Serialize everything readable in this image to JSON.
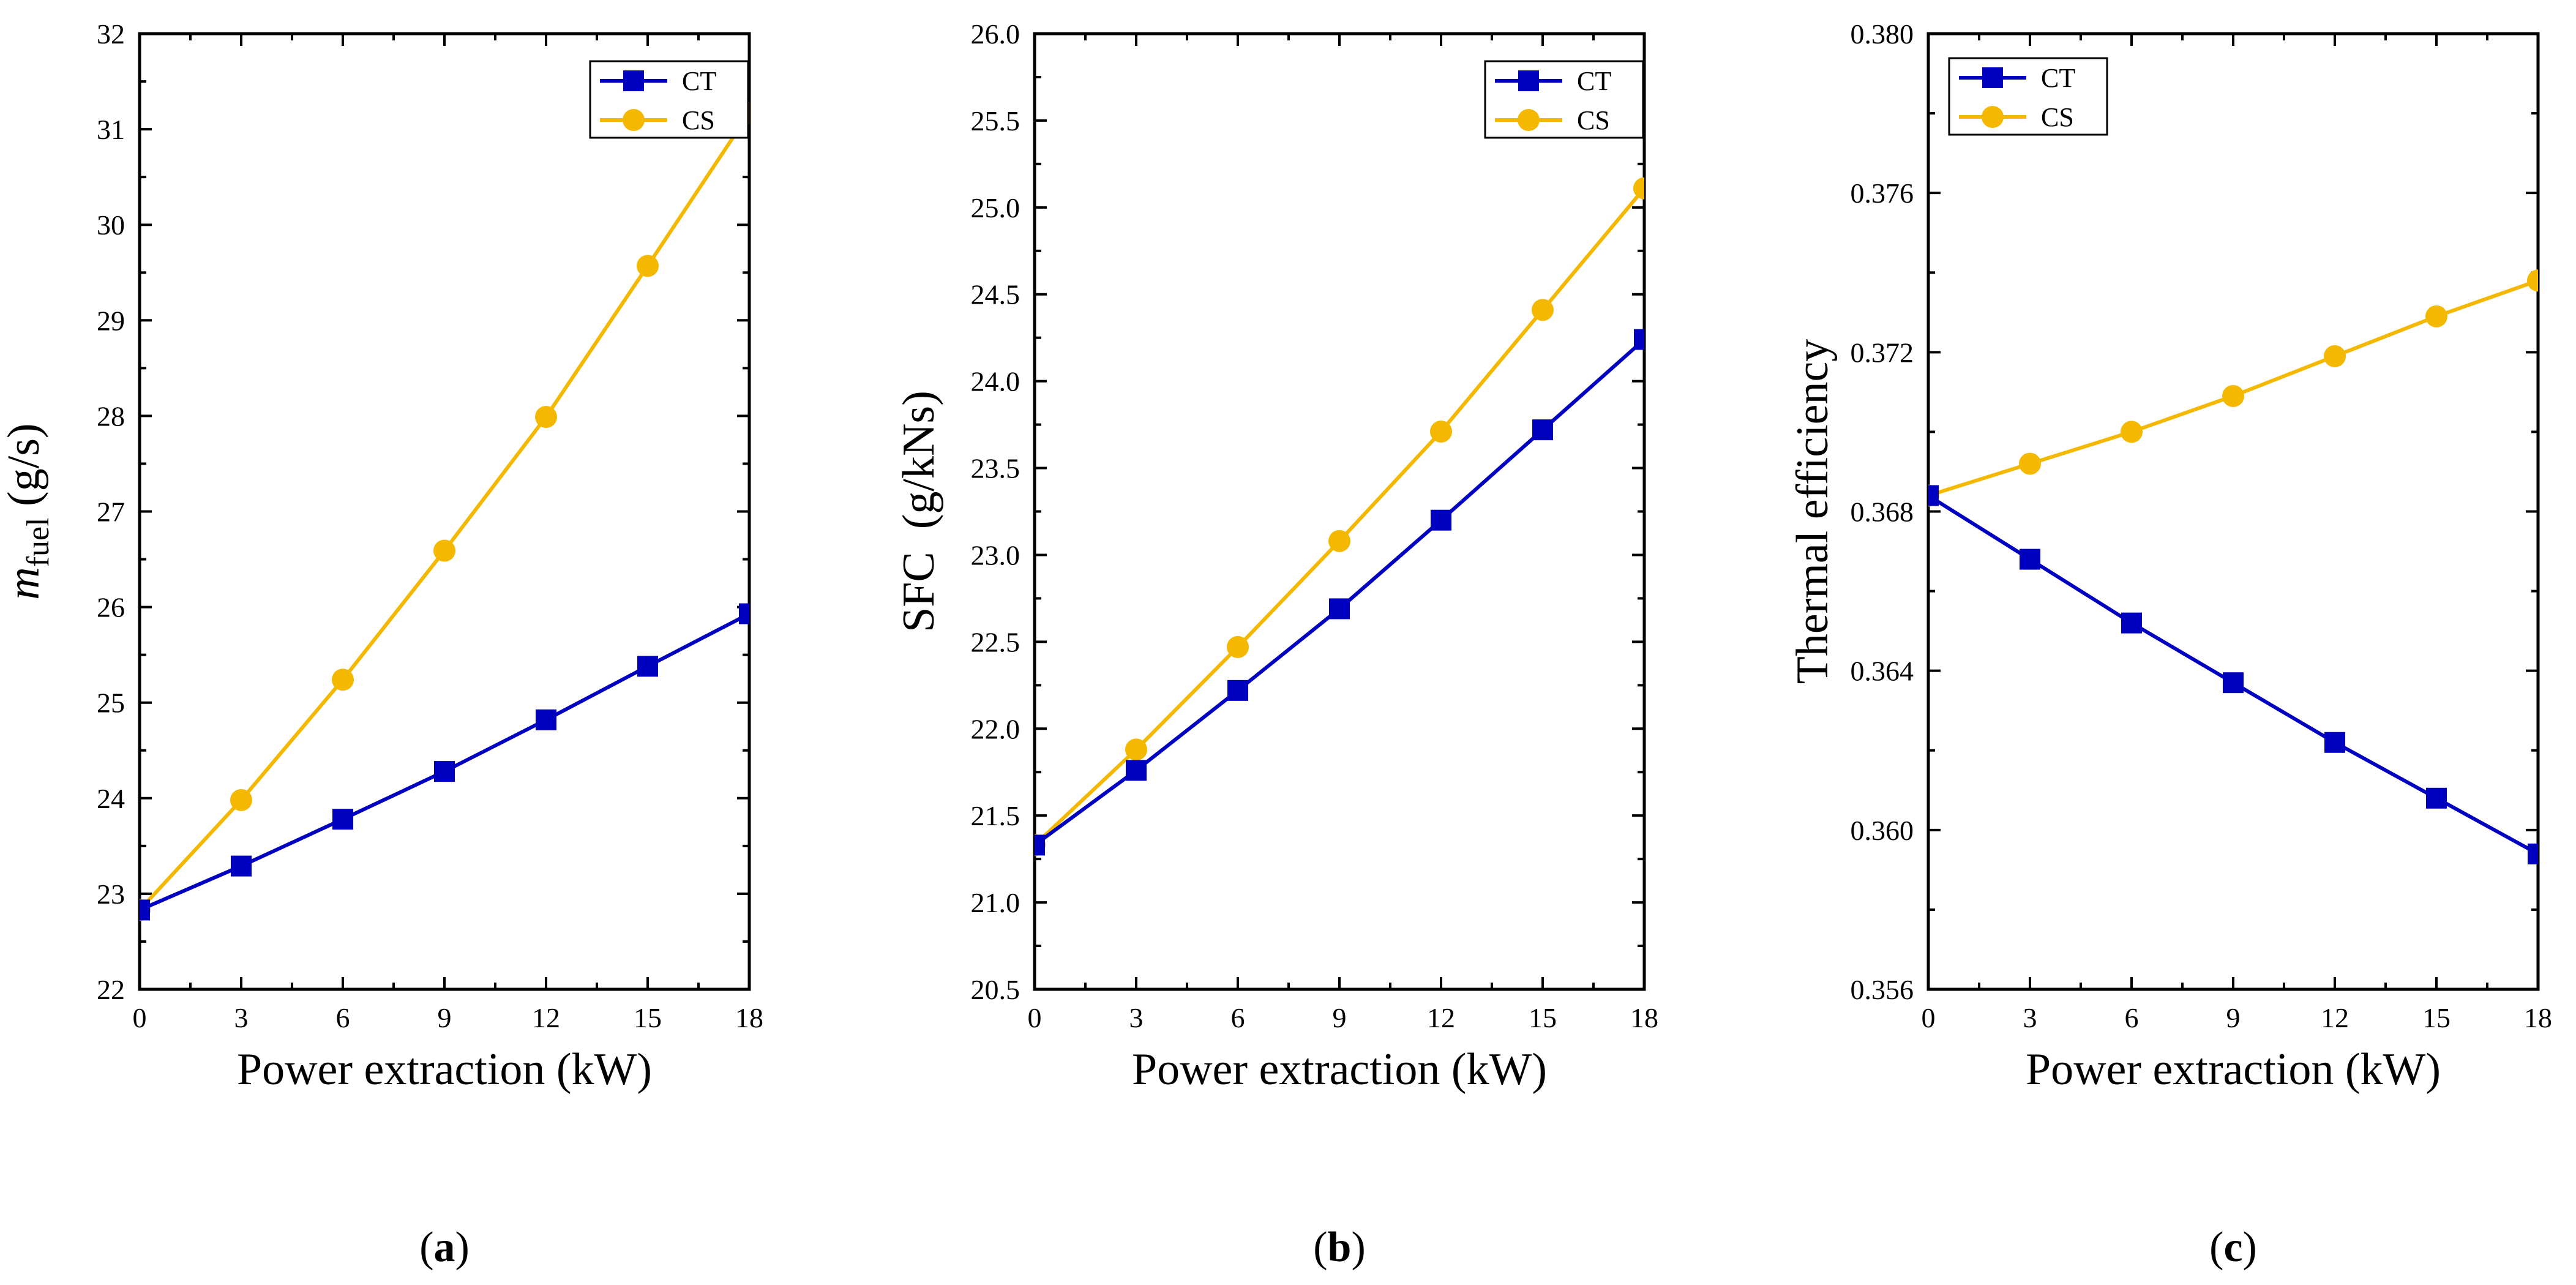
{
  "figure": {
    "panel_labels": [
      "a",
      "b",
      "c"
    ]
  },
  "colors": {
    "CT": "#0000c0",
    "CS": "#f5b800",
    "axis": "#000000"
  },
  "chart_data": [
    {
      "type": "line",
      "title": "",
      "xlabel": "Power extraction (kW)",
      "ylabel_symbol": "m",
      "ylabel_subscript": "fuel",
      "ylabel_unit": "(g/s)",
      "x": [
        0,
        3,
        6,
        9,
        12,
        15,
        18
      ],
      "xlim": [
        0,
        18
      ],
      "xticks": [
        "0",
        "3",
        "6",
        "9",
        "12",
        "15",
        "18"
      ],
      "ylim": [
        22,
        32
      ],
      "yticks": [
        "22",
        "23",
        "24",
        "25",
        "26",
        "27",
        "28",
        "29",
        "30",
        "31",
        "32"
      ],
      "yminor": true,
      "grid": false,
      "legend": "top-right",
      "series": [
        {
          "name": "CT",
          "marker": "square",
          "color": "#0000c0",
          "values": [
            22.83,
            23.29,
            23.78,
            24.28,
            24.82,
            25.38,
            25.93
          ]
        },
        {
          "name": "CS",
          "marker": "circle",
          "color": "#f5b800",
          "values": [
            22.83,
            23.98,
            25.24,
            26.59,
            27.99,
            29.57,
            31.17
          ]
        }
      ]
    },
    {
      "type": "line",
      "title": "",
      "xlabel": "Power extraction (kW)",
      "ylabel": "SFC  (g/kNs)",
      "x": [
        0,
        3,
        6,
        9,
        12,
        15,
        18
      ],
      "xlim": [
        0,
        18
      ],
      "xticks": [
        "0",
        "3",
        "6",
        "9",
        "12",
        "15",
        "18"
      ],
      "ylim": [
        20.5,
        26.0
      ],
      "yticks": [
        "20.5",
        "21.0",
        "21.5",
        "22.0",
        "22.5",
        "23.0",
        "23.5",
        "24.0",
        "24.5",
        "25.0",
        "25.5",
        "26.0"
      ],
      "yminor": true,
      "grid": false,
      "legend": "top-right",
      "series": [
        {
          "name": "CT",
          "marker": "square",
          "color": "#0000c0",
          "values": [
            21.33,
            21.76,
            22.22,
            22.69,
            23.2,
            23.72,
            24.24
          ]
        },
        {
          "name": "CS",
          "marker": "circle",
          "color": "#f5b800",
          "values": [
            21.33,
            21.88,
            22.47,
            23.08,
            23.71,
            24.41,
            25.11
          ]
        }
      ]
    },
    {
      "type": "line",
      "title": "",
      "xlabel": "Power extraction (kW)",
      "ylabel": "Thermal efficiency",
      "x": [
        0,
        3,
        6,
        9,
        12,
        15,
        18
      ],
      "xlim": [
        0,
        18
      ],
      "xticks": [
        "0",
        "3",
        "6",
        "9",
        "12",
        "15",
        "18"
      ],
      "ylim": [
        0.356,
        0.38
      ],
      "yticks": [
        "0.356",
        "0.360",
        "0.364",
        "0.368",
        "0.372",
        "0.376",
        "0.380"
      ],
      "yminor": true,
      "grid": false,
      "legend": "top-left",
      "series": [
        {
          "name": "CT",
          "marker": "square",
          "color": "#0000c0",
          "values": [
            0.3684,
            0.3668,
            0.3652,
            0.3637,
            0.3622,
            0.3608,
            0.3594
          ]
        },
        {
          "name": "CS",
          "marker": "circle",
          "color": "#f5b800",
          "values": [
            0.3684,
            0.3692,
            0.37,
            0.3709,
            0.3719,
            0.3729,
            0.3738
          ]
        }
      ]
    }
  ]
}
